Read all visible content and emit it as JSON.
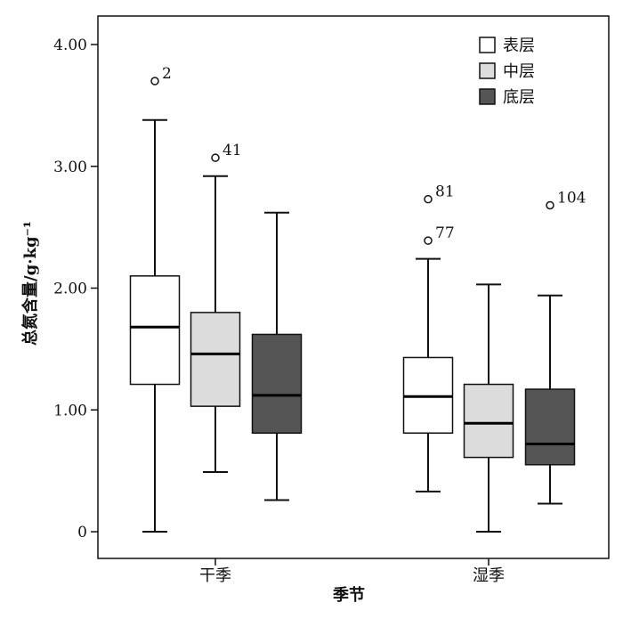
{
  "chart_data": {
    "type": "boxplot",
    "xlabel": "季节",
    "ylabel": "总氮含量/g·kg⁻¹",
    "ylim": [
      0,
      4.0
    ],
    "y_ticks": [
      {
        "value": 0,
        "label": "0"
      },
      {
        "value": 1.0,
        "label": "1.00"
      },
      {
        "value": 2.0,
        "label": "2.00"
      },
      {
        "value": 3.0,
        "label": "3.00"
      },
      {
        "value": 4.0,
        "label": "4.00"
      }
    ],
    "categories": [
      "干季",
      "湿季"
    ],
    "legend_position": "top-right",
    "grid": false,
    "series": [
      {
        "name": "表层",
        "color": "#ffffff",
        "boxes": [
          {
            "min": 0.0,
            "q1": 1.21,
            "median": 1.68,
            "q3": 2.1,
            "max": 3.38,
            "outliers": [
              {
                "value": 3.7,
                "label": "2"
              }
            ]
          },
          {
            "min": 0.33,
            "q1": 0.81,
            "median": 1.11,
            "q3": 1.43,
            "max": 2.24,
            "outliers": [
              {
                "value": 2.39,
                "label": "77"
              },
              {
                "value": 2.73,
                "label": "81"
              }
            ]
          }
        ]
      },
      {
        "name": "中层",
        "color": "#dcdcdc",
        "boxes": [
          {
            "min": 0.49,
            "q1": 1.03,
            "median": 1.46,
            "q3": 1.8,
            "max": 2.92,
            "outliers": [
              {
                "value": 3.07,
                "label": "41"
              }
            ]
          },
          {
            "min": 0.0,
            "q1": 0.61,
            "median": 0.89,
            "q3": 1.21,
            "max": 2.03,
            "outliers": []
          }
        ]
      },
      {
        "name": "底层",
        "color": "#555555",
        "boxes": [
          {
            "min": 0.26,
            "q1": 0.81,
            "median": 1.12,
            "q3": 1.62,
            "max": 2.62,
            "outliers": []
          },
          {
            "min": 0.23,
            "q1": 0.55,
            "median": 0.72,
            "q3": 1.17,
            "max": 1.94,
            "outliers": [
              {
                "value": 2.68,
                "label": "104"
              }
            ]
          }
        ]
      }
    ]
  }
}
